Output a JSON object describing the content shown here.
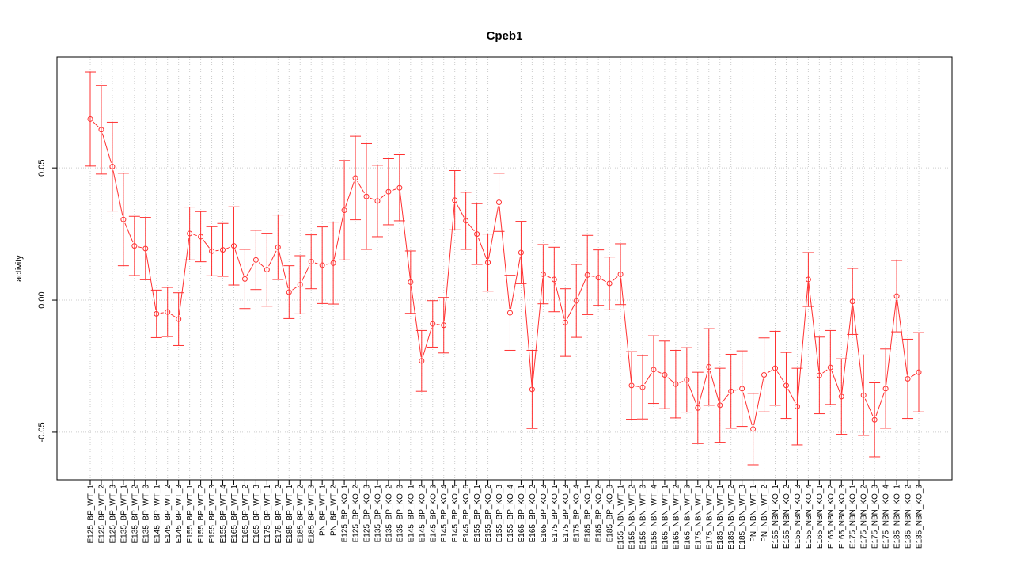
{
  "chart_data": {
    "type": "line",
    "title": "Cpeb1",
    "xlabel": "",
    "ylabel": "activity",
    "ylim": [
      -0.068,
      0.092
    ],
    "yticks": [
      -0.05,
      0.0,
      0.05
    ],
    "ytick_labels": [
      "-0.05",
      "0.00",
      "0.05"
    ],
    "grid": true,
    "series_color": "#ff3030",
    "grid_color": "#cccccc",
    "categories": [
      "E125_BP_WT_1",
      "E125_BP_WT_2",
      "E125_BP_WT_3",
      "E135_BP_WT_1",
      "E135_BP_WT_2",
      "E135_BP_WT_3",
      "E145_BP_WT_1",
      "E145_BP_WT_2",
      "E145_BP_WT_3",
      "E155_BP_WT_1",
      "E155_BP_WT_2",
      "E155_BP_WT_3",
      "E155_BP_WT_4",
      "E165_BP_WT_1",
      "E165_BP_WT_2",
      "E165_BP_WT_3",
      "E175_BP_WT_1",
      "E175_BP_WT_2",
      "E185_BP_WT_1",
      "E185_BP_WT_2",
      "E185_BP_WT_3",
      "PN_BP_WT_1",
      "PN_BP_WT_2",
      "E125_BP_KO_1",
      "E125_BP_KO_2",
      "E125_BP_KO_3",
      "E135_BP_KO_1",
      "E135_BP_KO_2",
      "E135_BP_KO_3",
      "E145_BP_KO_1",
      "E145_BP_KO_2",
      "E145_BP_KO_3",
      "E145_BP_KO_4",
      "E145_BP_KO_5",
      "E145_BP_KO_6",
      "E155_BP_KO_1",
      "E155_BP_KO_2",
      "E155_BP_KO_3",
      "E155_BP_KO_4",
      "E165_BP_KO_1",
      "E165_BP_KO_2",
      "E165_BP_KO_3",
      "E175_BP_KO_1",
      "E175_BP_KO_3",
      "E175_BP_KO_4",
      "E185_BP_KO_1",
      "E185_BP_KO_2",
      "E185_BP_KO_3",
      "E155_NBN_WT_1",
      "E155_NBN_WT_2",
      "E155_NBN_WT_3",
      "E155_NBN_WT_4",
      "E165_NBN_WT_1",
      "E165_NBN_WT_2",
      "E165_NBN_WT_3",
      "E175_NBN_WT_1",
      "E175_NBN_WT_2",
      "E185_NBN_WT_1",
      "E185_NBN_WT_2",
      "E185_NBN_WT_3",
      "PN_NBN_WT_1",
      "PN_NBN_WT_2",
      "E155_NBN_KO_1",
      "E155_NBN_KO_2",
      "E155_NBN_KO_3",
      "E155_NBN_KO_4",
      "E165_NBN_KO_1",
      "E165_NBN_KO_2",
      "E165_NBN_KO_3",
      "E175_NBN_KO_1",
      "E175_NBN_KO_2",
      "E175_NBN_KO_3",
      "E175_NBN_KO_4",
      "E185_NBN_KO_1",
      "E185_NBN_KO_2",
      "E185_NBN_KO_3"
    ],
    "values": [
      0.0685,
      0.0645,
      0.0505,
      0.0305,
      0.0205,
      0.0195,
      -0.0052,
      -0.0045,
      -0.0072,
      0.0252,
      0.024,
      0.0185,
      0.019,
      0.0205,
      0.008,
      0.0152,
      0.0115,
      0.02,
      0.003,
      0.0058,
      0.0145,
      0.0132,
      0.014,
      0.034,
      0.0462,
      0.0392,
      0.0375,
      0.041,
      0.0425,
      0.0068,
      -0.023,
      -0.009,
      -0.0095,
      0.0378,
      0.03,
      0.025,
      0.0142,
      0.037,
      -0.0048,
      0.018,
      -0.0338,
      0.0098,
      0.0078,
      -0.0085,
      -0.0003,
      0.0095,
      0.0085,
      0.0063,
      0.0098,
      -0.0323,
      -0.033,
      -0.0263,
      -0.0283,
      -0.0318,
      -0.0302,
      -0.0408,
      -0.0253,
      -0.0398,
      -0.0345,
      -0.0335,
      -0.0488,
      -0.0283,
      -0.0258,
      -0.0323,
      -0.0403,
      0.0078,
      -0.0285,
      -0.0255,
      -0.0365,
      -0.0005,
      -0.036,
      -0.0453,
      -0.0335,
      0.0015,
      -0.0298,
      -0.0273
    ],
    "error": [
      0.0178,
      0.0168,
      0.0168,
      0.0175,
      0.0112,
      0.0118,
      0.009,
      0.0093,
      0.01,
      0.01,
      0.0095,
      0.0093,
      0.01,
      0.0148,
      0.0112,
      0.0112,
      0.0138,
      0.0122,
      0.01,
      0.011,
      0.0102,
      0.0145,
      0.0155,
      0.0188,
      0.0158,
      0.02,
      0.0135,
      0.0125,
      0.0125,
      0.0118,
      0.0115,
      0.0088,
      0.0105,
      0.0112,
      0.0108,
      0.0115,
      0.0108,
      0.011,
      0.0142,
      0.0118,
      0.0148,
      0.0112,
      0.0122,
      0.0128,
      0.0138,
      0.015,
      0.0105,
      0.01,
      0.0115,
      0.0128,
      0.012,
      0.0128,
      0.0128,
      0.0128,
      0.0122,
      0.0135,
      0.0145,
      0.014,
      0.014,
      0.0143,
      0.0135,
      0.014,
      0.014,
      0.0125,
      0.0145,
      0.0102,
      0.0145,
      0.014,
      0.0143,
      0.0125,
      0.0152,
      0.014,
      0.015,
      0.0135,
      0.015,
      0.015
    ]
  }
}
